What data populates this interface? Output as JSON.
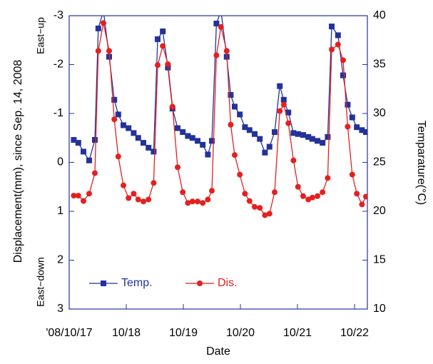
{
  "chart_data": {
    "type": "line",
    "x_label": "Date",
    "y_label": "Displacement(mm), since Sep. 14, 2008",
    "y2_label": "Temparature(°C)",
    "annotations": [
      "East−up",
      "East−down"
    ],
    "x": [
      0.08,
      0.16,
      0.25,
      0.35,
      0.45,
      0.51,
      0.6,
      0.7,
      0.79,
      0.86,
      0.95,
      1.04,
      1.13,
      1.21,
      1.3,
      1.39,
      1.48,
      1.55,
      1.64,
      1.73,
      1.81,
      1.9,
      1.99,
      2.08,
      2.16,
      2.25,
      2.34,
      2.43,
      2.5,
      2.58,
      2.66,
      2.76,
      2.83,
      2.9,
      2.99,
      3.08,
      3.16,
      3.25,
      3.34,
      3.43,
      3.51,
      3.6,
      3.69,
      3.76,
      3.84,
      3.93,
      4.01,
      4.1,
      4.19,
      4.26,
      4.35,
      4.44,
      4.53,
      4.6,
      4.71,
      4.8,
      4.88,
      4.96,
      5.04,
      5.13,
      5.2
    ],
    "series": [
      {
        "name": "Temp.",
        "color": "#23329a",
        "marker": "square",
        "axis": "y2",
        "values": [
          27.3,
          27.0,
          26.1,
          25.2,
          27.3,
          38.7,
          40.5,
          35.8,
          31.4,
          29.9,
          28.8,
          28.5,
          28.0,
          27.5,
          27.0,
          26.5,
          26.1,
          37.6,
          38.4,
          34.7,
          30.5,
          28.5,
          28.1,
          27.7,
          27.5,
          27.2,
          26.8,
          25.8,
          27.2,
          39.2,
          40.5,
          35.8,
          31.9,
          30.7,
          29.9,
          28.6,
          28.3,
          27.9,
          27.4,
          26.0,
          26.6,
          28.1,
          32.8,
          31.4,
          30.1,
          28.0,
          27.9,
          27.8,
          27.6,
          27.4,
          27.2,
          27.0,
          27.6,
          38.9,
          38.0,
          33.9,
          30.9,
          29.6,
          28.6,
          28.3,
          28.1
        ]
      },
      {
        "name": "Dis.",
        "color": "#e42020",
        "marker": "circle",
        "values": [
          0.68,
          0.68,
          0.79,
          0.64,
          0.22,
          -2.28,
          -2.85,
          -2.28,
          -0.88,
          -0.12,
          0.47,
          0.73,
          0.64,
          0.76,
          0.8,
          0.76,
          0.42,
          -1.99,
          -2.38,
          -2.01,
          -1.14,
          0.1,
          0.61,
          0.83,
          0.8,
          0.8,
          0.83,
          0.76,
          0.58,
          -2.19,
          -2.77,
          -2.28,
          -0.77,
          -0.15,
          0.25,
          0.64,
          0.79,
          0.91,
          0.93,
          1.08,
          1.05,
          0.61,
          -1.05,
          -1.18,
          -0.8,
          -0.04,
          0.5,
          0.69,
          0.76,
          0.72,
          0.69,
          0.61,
          0.32,
          -2.31,
          -2.41,
          -2.09,
          -0.73,
          0.25,
          0.64,
          0.86,
          0.7
        ]
      }
    ],
    "xlim": [
      0,
      5.225
    ],
    "xticks": [
      {
        "value": 0,
        "label": "'08/10/17"
      },
      {
        "value": 1,
        "label": "10/18"
      },
      {
        "value": 2,
        "label": "10/19"
      },
      {
        "value": 3,
        "label": "10/20"
      },
      {
        "value": 4,
        "label": "10/21"
      },
      {
        "value": 5,
        "label": "10/22"
      }
    ],
    "ylim": [
      3,
      -3
    ],
    "yticks": [
      -3,
      -2,
      -1,
      0,
      1,
      2,
      3
    ],
    "y2lim": [
      10,
      40
    ],
    "y2ticks": [
      10,
      15,
      20,
      25,
      30,
      35,
      40
    ],
    "axis_color": "#23329a",
    "legend": "lower left"
  }
}
